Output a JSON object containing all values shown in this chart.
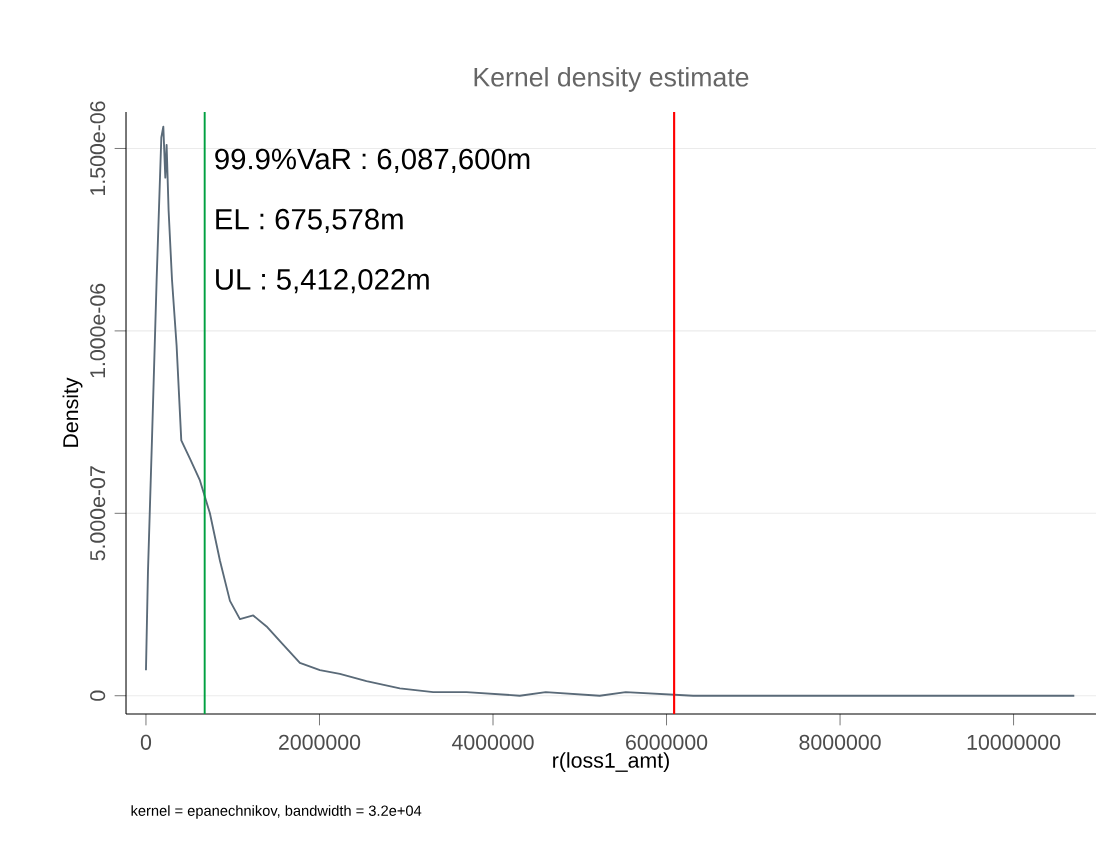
{
  "chart_data": {
    "type": "line",
    "title": "Kernel density estimate",
    "xlabel": "r(loss1_amt)",
    "ylabel": "Density",
    "series": [
      {
        "color": "#5a6a78",
        "x": [
          0,
          23000,
          69000,
          123000,
          177000,
          200000,
          223000,
          238000,
          261000,
          300000,
          353000,
          407000,
          507000,
          622000,
          737000,
          853000,
          968000,
          1083000,
          1236000,
          1390000,
          1544000,
          1774000,
          2005000,
          2235000,
          2542000,
          2926000,
          3311000,
          3694000,
          4309000,
          4608000,
          5230000,
          5530000,
          6306000,
          8000000,
          10700000
        ],
        "values": [
          7e-08,
          3.4e-07,
          7e-07,
          1.14e-06,
          1.53e-06,
          1.56e-06,
          1.42e-06,
          1.51e-06,
          1.33e-06,
          1.14e-06,
          9.6e-07,
          7e-07,
          6.5e-07,
          5.9e-07,
          5e-07,
          3.7e-07,
          2.6e-07,
          2.1e-07,
          2.2e-07,
          1.9e-07,
          1.5e-07,
          9e-08,
          7e-08,
          6e-08,
          4e-08,
          2e-08,
          1e-08,
          1e-08,
          0,
          1e-08,
          0,
          1e-08,
          0,
          0,
          0
        ]
      }
    ],
    "xlim": [
      -230000,
      10950000
    ],
    "ylim": [
      -5e-08,
      1.6e-06
    ],
    "xticks": [
      0,
      2000000,
      4000000,
      6000000,
      8000000,
      10000000
    ],
    "yticks": [
      0,
      {
        "value": 5e-07,
        "label": "5.000e-07"
      },
      {
        "value": 1e-06,
        "label": "1.000e-06"
      },
      {
        "value": 1.5e-06,
        "label": "1.500e-06"
      }
    ],
    "grid": "y",
    "marker": "none",
    "line_style": "solid",
    "ref_lines": [
      {
        "axis": "x",
        "value": 675578,
        "color": "#00a040"
      },
      {
        "axis": "x",
        "value": 6087600,
        "color": "#ff0000"
      }
    ],
    "annotations": [
      "99.9%VaR : 6,087,600m",
      "EL : 675,578m",
      "UL : 5,412,022m",
      "kernel = epanechnikov, bandwidth = 3.2e+04"
    ]
  }
}
